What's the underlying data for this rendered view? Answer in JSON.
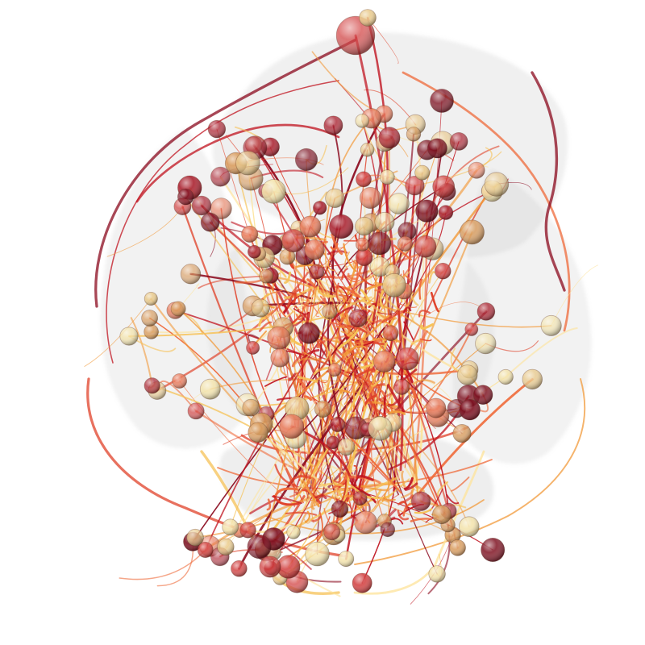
{
  "render": {
    "background_color": "#ffffff",
    "mesh_color": "#cfcfcf",
    "neuron_palette": [
      "#8b0a1e",
      "#c0121e",
      "#e0422a",
      "#ef6a3a",
      "#f29a3a",
      "#f6c257",
      "#fde39a"
    ],
    "soma_palette": [
      "#7a0a1a",
      "#a81c2a",
      "#d03a3a",
      "#e87a5a",
      "#d89a5a",
      "#e9c98a",
      "#f3e2a8"
    ]
  }
}
